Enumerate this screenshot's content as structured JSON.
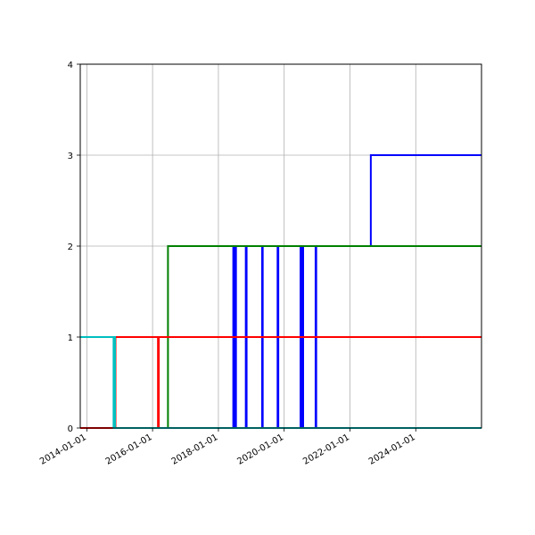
{
  "chart_data": {
    "type": "line",
    "drawstyle": "steps-post",
    "title": "",
    "xlabel": "",
    "ylabel": "",
    "xlim": [
      "2013-10-20",
      "2025-12-31"
    ],
    "ylim": [
      0,
      4
    ],
    "grid": true,
    "legend": "none",
    "x_tick_labels": [
      "2014-01-01",
      "2016-01-01",
      "2018-01-01",
      "2020-01-01",
      "2022-01-01",
      "2024-01-01"
    ],
    "y_tick_labels": [
      "0",
      "1",
      "2",
      "3",
      "4"
    ],
    "series": [
      {
        "color": "#0000ff",
        "points": [
          [
            "2013-10-20",
            0
          ],
          [
            "2018-06-15",
            2
          ],
          [
            "2018-06-25",
            0
          ],
          [
            "2018-07-05",
            2
          ],
          [
            "2018-07-15",
            0
          ],
          [
            "2018-11-01",
            2
          ],
          [
            "2018-11-10",
            0
          ],
          [
            "2019-05-01",
            2
          ],
          [
            "2019-05-08",
            0
          ],
          [
            "2019-10-20",
            2
          ],
          [
            "2019-10-28",
            0
          ],
          [
            "2020-07-01",
            2
          ],
          [
            "2020-07-10",
            0
          ],
          [
            "2020-07-20",
            2
          ],
          [
            "2020-07-30",
            0
          ],
          [
            "2020-12-15",
            2
          ],
          [
            "2020-12-22",
            0
          ],
          [
            "2025-12-31",
            0
          ]
        ]
      },
      {
        "color": "#0000ff",
        "points": [
          [
            "2022-08-20",
            2
          ],
          [
            "2022-08-20",
            3
          ],
          [
            "2025-12-31",
            3
          ]
        ]
      },
      {
        "color": "#008000",
        "points": [
          [
            "2013-10-20",
            0
          ],
          [
            "2016-06-20",
            0
          ],
          [
            "2016-06-20",
            2
          ],
          [
            "2025-12-31",
            2
          ]
        ]
      },
      {
        "color": "#ff0000",
        "points": [
          [
            "2013-10-20",
            0
          ],
          [
            "2014-11-15",
            0
          ],
          [
            "2014-11-15",
            1
          ],
          [
            "2016-03-01",
            1
          ],
          [
            "2016-03-01",
            0
          ],
          [
            "2016-03-10",
            0
          ],
          [
            "2016-03-10",
            1
          ],
          [
            "2025-12-31",
            1
          ]
        ]
      },
      {
        "color": "#00bfbf",
        "points": [
          [
            "2013-10-20",
            1
          ],
          [
            "2014-10-25",
            1
          ],
          [
            "2014-10-25",
            0
          ],
          [
            "2014-11-05",
            0
          ],
          [
            "2014-11-05",
            1
          ],
          [
            "2014-11-10",
            1
          ],
          [
            "2014-11-10",
            0
          ],
          [
            "2025-12-31",
            0
          ]
        ]
      }
    ]
  }
}
